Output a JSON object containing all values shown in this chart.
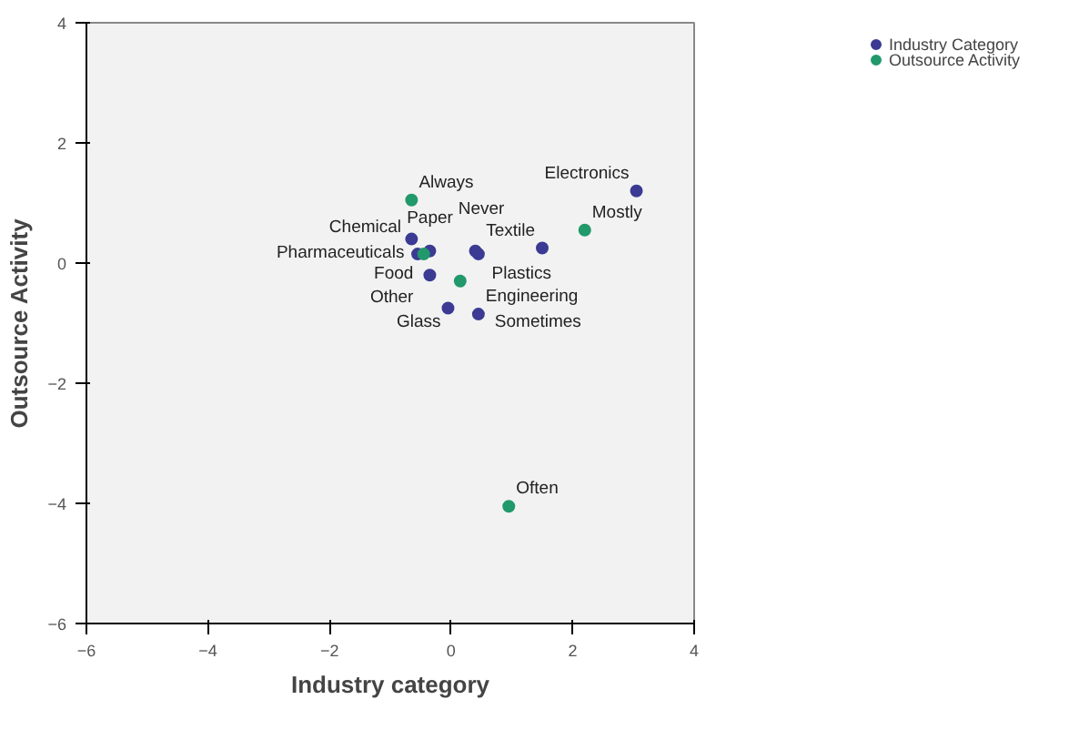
{
  "chart_data": {
    "type": "scatter",
    "xlabel": "Industry category",
    "ylabel": "Outsource Activity",
    "xlim": [
      -6,
      4
    ],
    "ylim": [
      -6,
      4
    ],
    "xticks": [
      -6,
      -4,
      -2,
      0,
      2,
      4
    ],
    "yticks": [
      -6,
      -4,
      -2,
      0,
      2,
      4
    ],
    "grid": false,
    "legend": "top right",
    "marker": "circle",
    "series": [
      {
        "name": "Industry Category",
        "color": "#3b3b94",
        "x": [
          3.05,
          1.5,
          0.4,
          0.45,
          -0.35,
          -0.65,
          -0.55,
          -0.35,
          -0.05,
          0.45
        ],
        "values": [
          1.2,
          0.25,
          0.2,
          0.15,
          0.2,
          0.4,
          0.15,
          -0.2,
          -0.75,
          -0.85
        ]
      },
      {
        "name": "Outsource Activity",
        "color": "#22996b",
        "x": [
          -0.65,
          2.2,
          0.15,
          0.95,
          -0.45
        ],
        "values": [
          1.05,
          0.55,
          -0.3,
          -4.05,
          0.15
        ]
      }
    ],
    "annotations": [
      {
        "text": "Electronics",
        "x": 3.05,
        "y": 1.2
      },
      {
        "text": "Textile",
        "x": 1.5,
        "y": 0.25
      },
      {
        "text": "Plastics",
        "x": 0.4,
        "y": 0.2
      },
      {
        "text": "Paper",
        "x": 0.45,
        "y": 0.15
      },
      {
        "text": "Food",
        "x": -0.35,
        "y": 0.2
      },
      {
        "text": "Pharmaceuticals",
        "x": -0.65,
        "y": 0.4
      },
      {
        "text": "Chemical",
        "x": -0.55,
        "y": 0.15
      },
      {
        "text": "Other",
        "x": -0.35,
        "y": -0.2
      },
      {
        "text": "Glass",
        "x": -0.05,
        "y": -0.75
      },
      {
        "text": "Engineering",
        "x": 0.45,
        "y": -0.85
      },
      {
        "text": "Always",
        "x": -0.65,
        "y": 1.05
      },
      {
        "text": "Mostly",
        "x": 2.2,
        "y": 0.55
      },
      {
        "text": "Sometimes",
        "x": 0.15,
        "y": -0.3
      },
      {
        "text": "Often",
        "x": 0.95,
        "y": -4.05
      },
      {
        "text": "Never",
        "x": -0.45,
        "y": 0.15
      }
    ]
  }
}
